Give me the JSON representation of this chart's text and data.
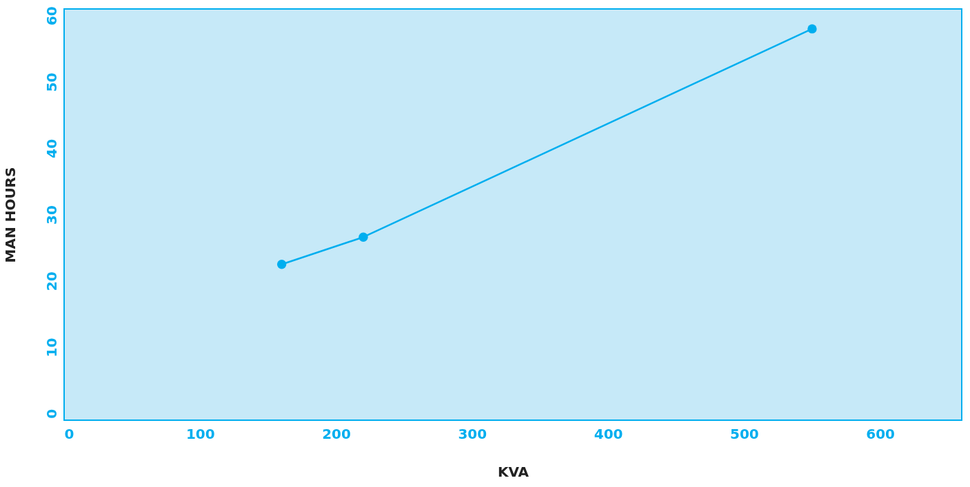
{
  "chart_data": {
    "type": "line",
    "xlabel": "KVA",
    "ylabel": "MAN HOURS",
    "x": [
      160,
      220,
      550
    ],
    "series": [
      {
        "color": "#00aeef",
        "values": [
          22.5,
          26.6,
          58
        ]
      }
    ],
    "xlim": [
      0,
      660
    ],
    "xticks": [
      0,
      100,
      200,
      300,
      400,
      500,
      600
    ],
    "ylim": [
      -1,
      61
    ],
    "yticks": [
      0,
      10,
      20,
      30,
      40,
      50,
      60
    ],
    "grid": false,
    "marker": "circle",
    "line_style": "solid"
  }
}
